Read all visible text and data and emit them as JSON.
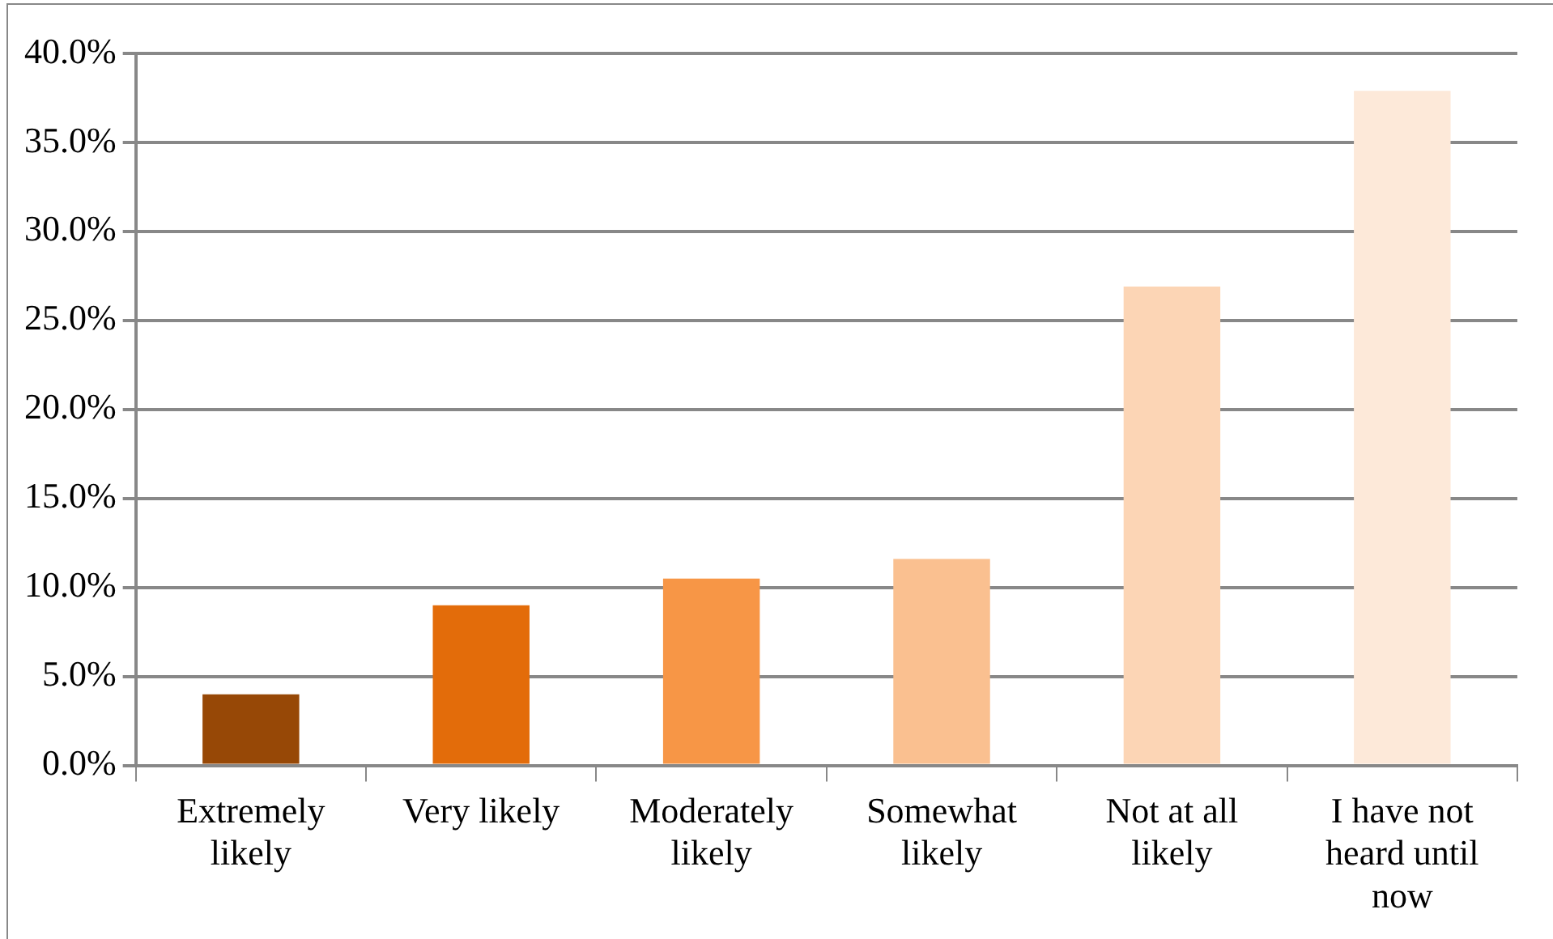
{
  "chart_data": {
    "type": "bar",
    "categories": [
      "Extremely likely",
      "Very likely",
      "Moderately likely",
      "Somewhat likely",
      "Not at all likely",
      "I have not heard until now"
    ],
    "values": [
      4.0,
      9.0,
      10.5,
      11.6,
      26.9,
      37.9
    ],
    "colors": [
      "#974806",
      "#e36c0a",
      "#f79646",
      "#fac090",
      "#fcd5b5",
      "#fde9d9"
    ],
    "ylim": [
      0,
      40
    ],
    "yticks": [
      {
        "value": 0,
        "label": "0.0%"
      },
      {
        "value": 5,
        "label": "5.0%"
      },
      {
        "value": 10,
        "label": "10.0%"
      },
      {
        "value": 15,
        "label": "15.0%"
      },
      {
        "value": 20,
        "label": "20.0%"
      },
      {
        "value": 25,
        "label": "25.0%"
      },
      {
        "value": 30,
        "label": "30.0%"
      },
      {
        "value": 35,
        "label": "35.0%"
      },
      {
        "value": 40,
        "label": "40.0%"
      }
    ],
    "grid": "y",
    "legend": false
  }
}
